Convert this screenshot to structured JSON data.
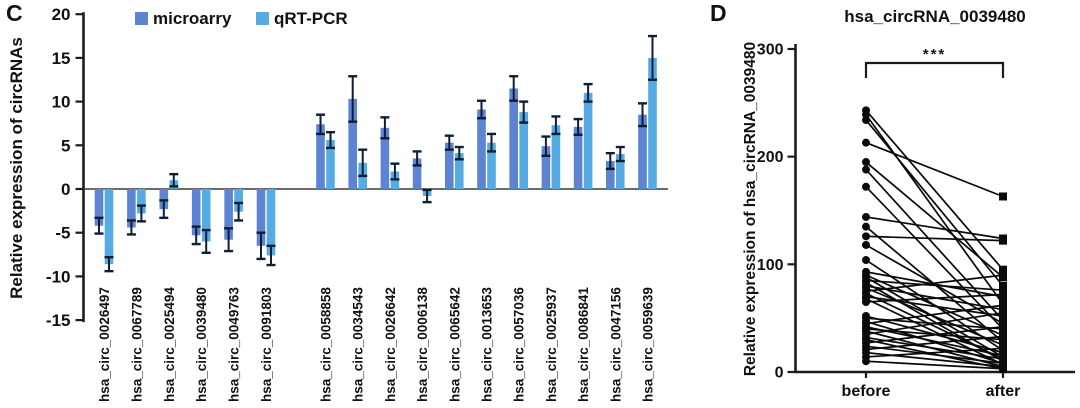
{
  "panels": {
    "c": {
      "label": "C"
    },
    "d": {
      "label": "D"
    }
  },
  "colors": {
    "microarray": "#5d84d3",
    "qrtpcr": "#55abe2",
    "error_bar": "#0f1d36",
    "axis": "#1c1c1c",
    "marker": "#0a0a0a"
  },
  "chart_data": [
    {
      "type": "bar",
      "panel": "C",
      "title": "",
      "xlabel": "",
      "ylabel": "Relative expression of circRNAs",
      "ylim": [
        -15,
        20
      ],
      "yticks": [
        20,
        15,
        10,
        5,
        0,
        -5,
        -10,
        -15
      ],
      "grid": false,
      "legend_position": "top",
      "gap_after_category_index": 5,
      "categories": [
        "hsa_circ_0026497",
        "hsa_circ_0067789",
        "hsa_circ_0025494",
        "hsa_circ_0039480",
        "hsa_circ_0049763",
        "hsa_circ_0091803",
        "hsa_circ_0058858",
        "hsa_circ_0034543",
        "hsa_circ_0026642",
        "hsa_circ_0006138",
        "hsa_circ_0065642",
        "hsa_circ_0013653",
        "hsa_circ_0057036",
        "hsa_circ_0025937",
        "hsa_circ_0086841",
        "hsa_circ_0047156",
        "hsa_circ_0059639"
      ],
      "series": [
        {
          "name": "microarry",
          "color": "#5d84d3",
          "values": [
            -4.2,
            -4.4,
            -2.3,
            -5.3,
            -5.8,
            -6.5,
            7.4,
            10.3,
            7.0,
            3.5,
            5.3,
            9.1,
            11.5,
            4.9,
            7.1,
            3.2,
            8.5
          ],
          "errors": [
            0.9,
            0.8,
            1.0,
            1.0,
            1.3,
            1.5,
            1.1,
            2.6,
            1.2,
            0.8,
            0.8,
            1.0,
            1.4,
            1.1,
            0.9,
            0.9,
            1.3
          ]
        },
        {
          "name": "qRT-PCR",
          "color": "#55abe2",
          "values": [
            -8.6,
            -2.8,
            1.0,
            -6.0,
            -2.6,
            -7.6,
            5.6,
            3.0,
            2.0,
            -0.8,
            4.1,
            5.3,
            8.8,
            7.3,
            11.0,
            4.0,
            15.0
          ],
          "errors": [
            0.8,
            0.9,
            0.7,
            1.3,
            1.0,
            1.1,
            0.9,
            1.5,
            0.9,
            0.7,
            0.7,
            1.0,
            1.2,
            1.0,
            1.0,
            0.8,
            2.5
          ]
        }
      ]
    },
    {
      "type": "line",
      "subtype": "paired-before-after",
      "panel": "D",
      "title": "hsa_circRNA_0039480",
      "xlabel": "",
      "ylabel": "Relative expression of hsa_circRNA_0039480",
      "ylim": [
        0,
        300
      ],
      "yticks": [
        300,
        200,
        100,
        0
      ],
      "grid": false,
      "categories": [
        "before",
        "after"
      ],
      "significance": "***",
      "pairs": [
        [
          243,
          95
        ],
        [
          239,
          63
        ],
        [
          234,
          80
        ],
        [
          213,
          163
        ],
        [
          195,
          88
        ],
        [
          188,
          48
        ],
        [
          172,
          40
        ],
        [
          144,
          124
        ],
        [
          135,
          28
        ],
        [
          126,
          122
        ],
        [
          118,
          45
        ],
        [
          104,
          20
        ],
        [
          93,
          70
        ],
        [
          90,
          34
        ],
        [
          88,
          14
        ],
        [
          85,
          76
        ],
        [
          83,
          10
        ],
        [
          80,
          58
        ],
        [
          78,
          25
        ],
        [
          75,
          90
        ],
        [
          73,
          12
        ],
        [
          70,
          52
        ],
        [
          68,
          7
        ],
        [
          65,
          72
        ],
        [
          52,
          18
        ],
        [
          50,
          40
        ],
        [
          47,
          8
        ],
        [
          45,
          62
        ],
        [
          42,
          15
        ],
        [
          40,
          30
        ],
        [
          38,
          5
        ],
        [
          35,
          55
        ],
        [
          32,
          12
        ],
        [
          30,
          3
        ],
        [
          27,
          42
        ],
        [
          24,
          8
        ],
        [
          21,
          33
        ],
        [
          18,
          5
        ],
        [
          14,
          22
        ],
        [
          10,
          3
        ]
      ]
    }
  ]
}
